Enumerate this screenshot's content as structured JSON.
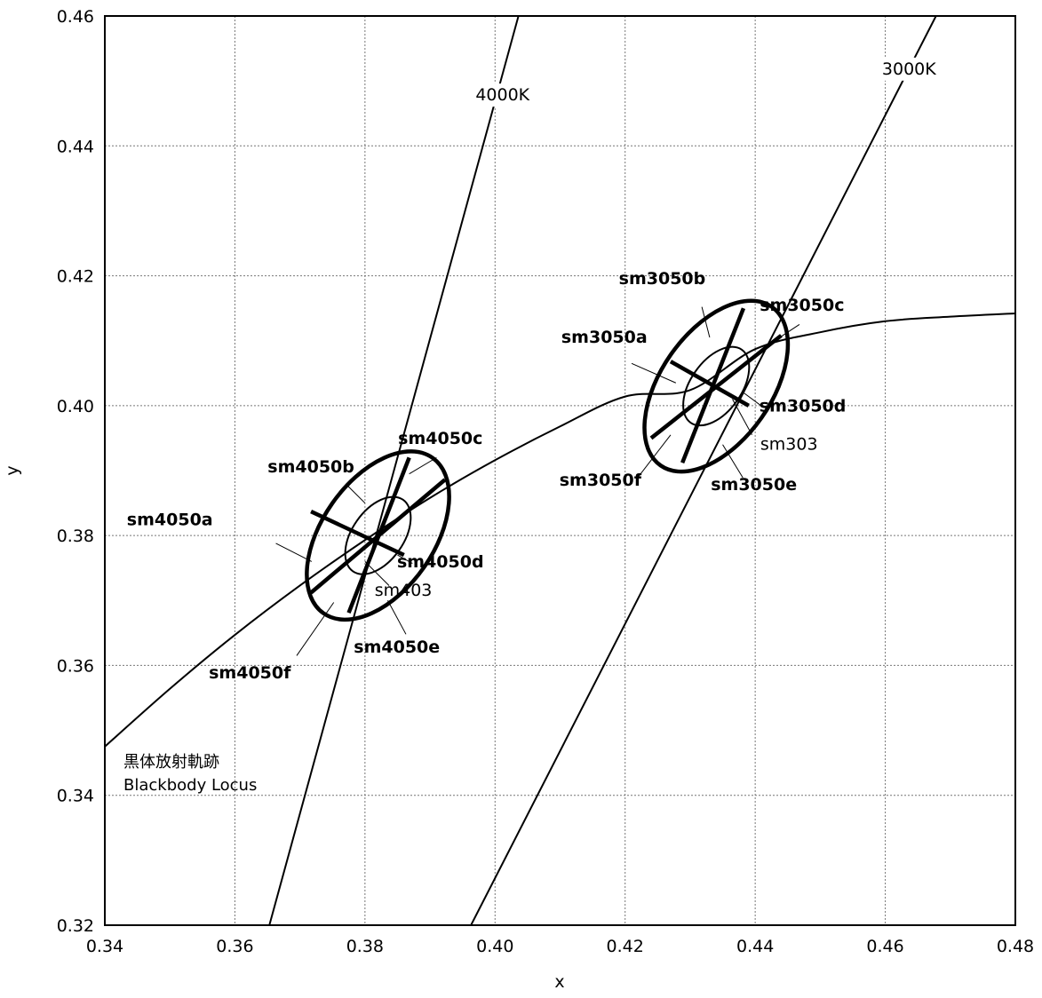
{
  "chart_data": {
    "type": "scatter",
    "title": "",
    "xlabel": "x",
    "ylabel": "y",
    "xlim": [
      0.34,
      0.48
    ],
    "ylim": [
      0.32,
      0.46
    ],
    "grid": true,
    "x_ticks": [
      "0.34",
      "0.36",
      "0.38",
      "0.40",
      "0.42",
      "0.44",
      "0.46",
      "0.48"
    ],
    "y_ticks": [
      "0.32",
      "0.34",
      "0.36",
      "0.38",
      "0.40",
      "0.42",
      "0.44",
      "0.46"
    ],
    "blackbody_locus": {
      "label_ja": "黒体放射軌跡",
      "label_en": "Blackbody Locus",
      "points": [
        [
          0.34,
          0.3475
        ],
        [
          0.35,
          0.3564
        ],
        [
          0.36,
          0.3647
        ],
        [
          0.37,
          0.3723
        ],
        [
          0.38,
          0.3793
        ],
        [
          0.39,
          0.3858
        ],
        [
          0.4,
          0.3916
        ],
        [
          0.41,
          0.3968
        ],
        [
          0.42,
          0.4014
        ],
        [
          0.43,
          0.4024
        ],
        [
          0.44,
          0.4087
        ],
        [
          0.45,
          0.4113
        ],
        [
          0.46,
          0.413
        ],
        [
          0.47,
          0.4137
        ],
        [
          0.48,
          0.4142
        ]
      ]
    },
    "isotherms": [
      {
        "label": "4000K",
        "x1": 0.3653,
        "y1": 0.32,
        "x2": 0.4036,
        "y2": 0.46,
        "label_x": 0.397,
        "label_y": 0.447
      },
      {
        "label": "3000K",
        "x1": 0.3963,
        "y1": 0.32,
        "x2": 0.4678,
        "y2": 0.46,
        "label_x": 0.4595,
        "label_y": 0.451
      }
    ],
    "ellipses": [
      {
        "name": "sm4050",
        "center": [
          0.382,
          0.38
        ],
        "semi_axis_major": 0.0146,
        "semi_axis_minor": 0.0086,
        "tilt_deg": 55,
        "inner_name": "sm403",
        "inner_scale": 0.46,
        "segment_labels": [
          "sm4050a",
          "sm4050b",
          "sm4050c",
          "sm4050d",
          "sm4050e",
          "sm4050f"
        ],
        "segment_endpoints": [
          [
            [
              0.3717,
              0.3837
            ],
            [
              0.386,
              0.377
            ]
          ],
          [
            [
              0.3717,
              0.3712
            ],
            [
              0.3923,
              0.3886
            ]
          ],
          [
            [
              0.3775,
              0.3681
            ],
            [
              0.3868,
              0.392
            ]
          ]
        ]
      },
      {
        "name": "sm3050",
        "center": [
          0.434,
          0.403
        ],
        "semi_axis_major": 0.0149,
        "semi_axis_minor": 0.0085,
        "tilt_deg": 55,
        "inner_name": "sm303",
        "inner_scale": 0.46,
        "segment_labels": [
          "sm3050a",
          "sm3050b",
          "sm3050c",
          "sm3050d",
          "sm3050e",
          "sm3050f"
        ],
        "segment_endpoints": [
          [
            [
              0.427,
              0.4068
            ],
            [
              0.439,
              0.4
            ]
          ],
          [
            [
              0.424,
              0.395
            ],
            [
              0.444,
              0.4108
            ]
          ],
          [
            [
              0.4288,
              0.3912
            ],
            [
              0.4382,
              0.415
            ]
          ]
        ]
      }
    ],
    "annotations": [
      {
        "text": "sm4050a",
        "bold": true,
        "text_x": 0.35,
        "text_y": 0.3816,
        "anchor": "middle",
        "line": [
          [
            0.3663,
            0.3788
          ],
          [
            0.3718,
            0.376
          ]
        ]
      },
      {
        "text": "sm4050b",
        "bold": true,
        "text_x": 0.3717,
        "text_y": 0.3897,
        "anchor": "middle",
        "line": [
          [
            0.3772,
            0.3878
          ],
          [
            0.38,
            0.385
          ]
        ]
      },
      {
        "text": "sm4050c",
        "bold": true,
        "text_x": 0.3916,
        "text_y": 0.3941,
        "anchor": "middle",
        "line": [
          [
            0.391,
            0.392
          ],
          [
            0.3868,
            0.3895
          ]
        ]
      },
      {
        "text": "sm4050d",
        "bold": true,
        "text_x": 0.3916,
        "text_y": 0.3751,
        "anchor": "middle",
        "line": [
          [
            0.3873,
            0.3757
          ],
          [
            0.385,
            0.377
          ]
        ]
      },
      {
        "text": "sm4050e",
        "bold": true,
        "text_x": 0.3849,
        "text_y": 0.362,
        "anchor": "middle",
        "line": [
          [
            0.3863,
            0.3648
          ],
          [
            0.3835,
            0.37
          ]
        ]
      },
      {
        "text": "sm4050f",
        "bold": true,
        "text_x": 0.3623,
        "text_y": 0.358,
        "anchor": "middle",
        "line": [
          [
            0.3695,
            0.3615
          ],
          [
            0.3752,
            0.3697
          ]
        ]
      },
      {
        "text": "sm403",
        "bold": false,
        "text_x": 0.3859,
        "text_y": 0.3707,
        "anchor": "middle",
        "line": [
          [
            0.3837,
            0.3723
          ],
          [
            0.38,
            0.376
          ]
        ]
      },
      {
        "text": "sm3050a",
        "bold": true,
        "text_x": 0.4168,
        "text_y": 0.4097,
        "anchor": "middle",
        "line": [
          [
            0.421,
            0.4065
          ],
          [
            0.4278,
            0.4035
          ]
        ]
      },
      {
        "text": "sm3050b",
        "bold": true,
        "text_x": 0.4257,
        "text_y": 0.4187,
        "anchor": "middle",
        "line": [
          [
            0.4318,
            0.4152
          ],
          [
            0.433,
            0.4105
          ]
        ]
      },
      {
        "text": "sm3050c",
        "bold": true,
        "text_x": 0.4472,
        "text_y": 0.4146,
        "anchor": "middle",
        "line": [
          [
            0.4468,
            0.4125
          ],
          [
            0.4415,
            0.409
          ]
        ]
      },
      {
        "text": "sm3050d",
        "bold": true,
        "text_x": 0.4473,
        "text_y": 0.3991,
        "anchor": "middle",
        "line": [
          [
            0.4413,
            0.3997
          ],
          [
            0.4382,
            0.402
          ]
        ]
      },
      {
        "text": "sm3050e",
        "bold": true,
        "text_x": 0.4398,
        "text_y": 0.387,
        "anchor": "middle",
        "line": [
          [
            0.4381,
            0.3889
          ],
          [
            0.435,
            0.394
          ]
        ]
      },
      {
        "text": "sm3050f",
        "bold": true,
        "text_x": 0.4162,
        "text_y": 0.3877,
        "anchor": "middle",
        "line": [
          [
            0.422,
            0.389
          ],
          [
            0.427,
            0.3955
          ]
        ]
      },
      {
        "text": "sm303",
        "bold": false,
        "text_x": 0.4452,
        "text_y": 0.3932,
        "anchor": "middle",
        "line": [
          [
            0.4395,
            0.3955
          ],
          [
            0.4365,
            0.401
          ]
        ]
      }
    ]
  }
}
